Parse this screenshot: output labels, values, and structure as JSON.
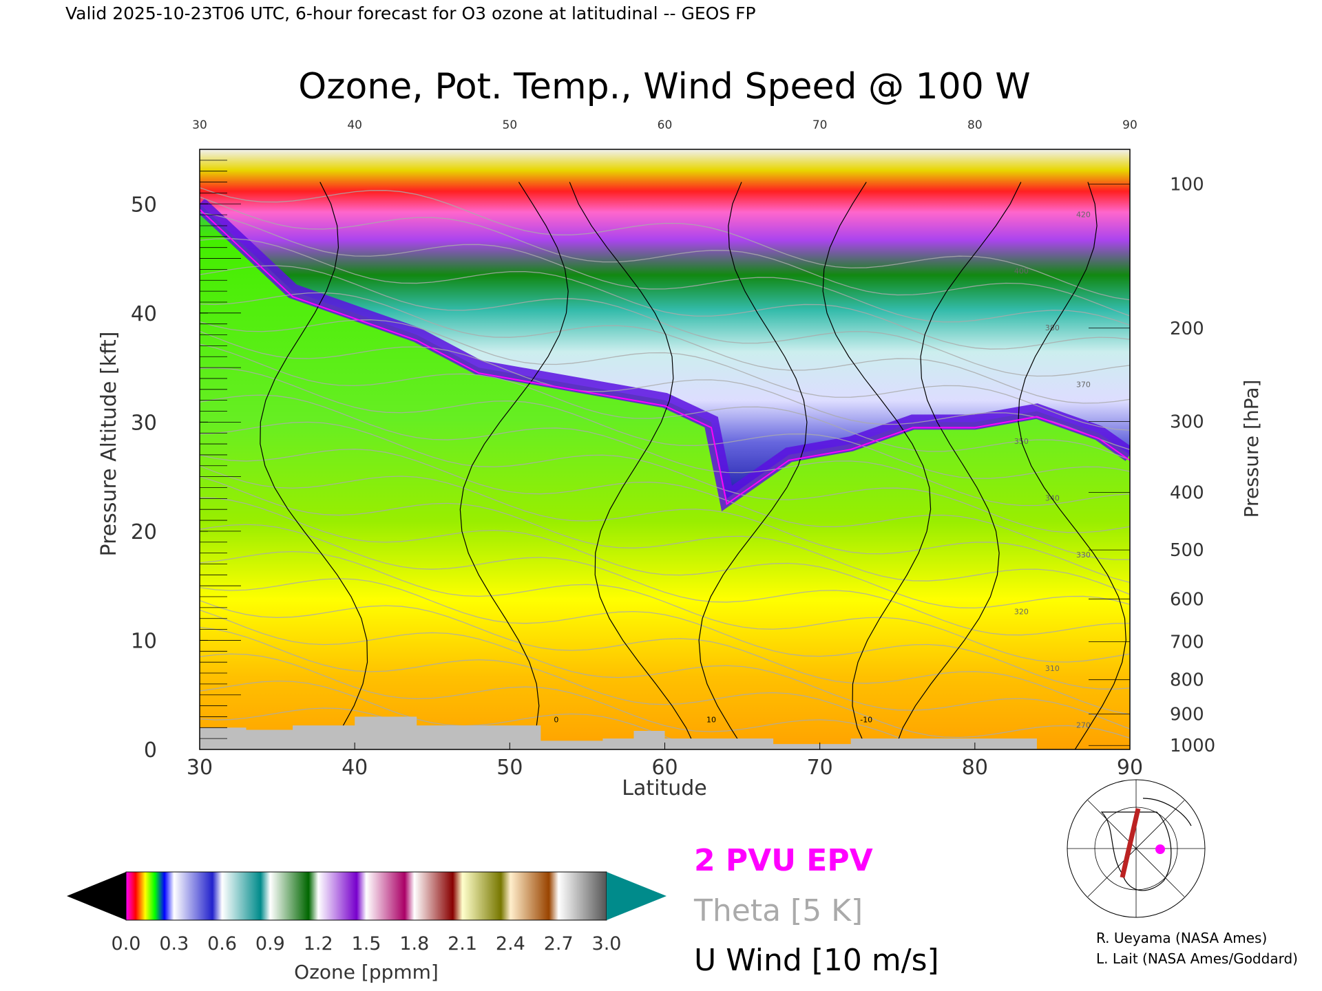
{
  "header": "Valid 2025-10-23T06 UTC, 6-hour forecast for O3 ozone at latitudinal -- GEOS FP",
  "chart_data": {
    "type": "heatmap",
    "title": "Ozone, Pot. Temp., Wind Speed @ 100 W",
    "xlabel": "Latitude",
    "ylabel": "Pressure Altitude [kft]",
    "y2label": "Pressure [hPa]",
    "xlim": [
      30,
      90
    ],
    "ylim": [
      0,
      55
    ],
    "x_ticks": [
      30,
      40,
      50,
      60,
      70,
      80,
      90
    ],
    "y_ticks": [
      0,
      10,
      20,
      30,
      40,
      50
    ],
    "pressure_ticks": [
      100,
      200,
      300,
      400,
      500,
      600,
      700,
      800,
      900,
      1000
    ],
    "overlays": [
      {
        "name": "2 PVU EPV",
        "color": "#ff00ff"
      },
      {
        "name": "Theta [5 K]",
        "color": "#aaaaaa"
      },
      {
        "name": "U Wind [10 m/s]",
        "color": "#000000"
      }
    ],
    "theta_labels": [
      "270",
      "310",
      "320",
      "330",
      "340",
      "350",
      "370",
      "380",
      "400",
      "420"
    ],
    "wind_labels": [
      "0",
      "10",
      "-10"
    ],
    "colorbar": {
      "label": "Ozone [ppmm]",
      "min": 0.0,
      "max": 3.0,
      "ticks": [
        "0.0",
        "0.3",
        "0.6",
        "0.9",
        "1.2",
        "1.5",
        "1.8",
        "2.1",
        "2.4",
        "2.7",
        "3.0"
      ],
      "under_color": "#000000",
      "over_color": "#008b8b"
    },
    "tropopause_alt_kft": [
      {
        "lat": 30,
        "alt": 50
      },
      {
        "lat": 33,
        "alt": 46
      },
      {
        "lat": 36,
        "alt": 42
      },
      {
        "lat": 40,
        "alt": 40
      },
      {
        "lat": 44,
        "alt": 38
      },
      {
        "lat": 48,
        "alt": 35
      },
      {
        "lat": 52,
        "alt": 34
      },
      {
        "lat": 56,
        "alt": 33
      },
      {
        "lat": 60,
        "alt": 32
      },
      {
        "lat": 63,
        "alt": 30
      },
      {
        "lat": 64,
        "alt": 23
      },
      {
        "lat": 68,
        "alt": 27
      },
      {
        "lat": 72,
        "alt": 28
      },
      {
        "lat": 76,
        "alt": 30
      },
      {
        "lat": 80,
        "alt": 30
      },
      {
        "lat": 84,
        "alt": 31
      },
      {
        "lat": 88,
        "alt": 29
      },
      {
        "lat": 90,
        "alt": 27
      }
    ],
    "terrain_alt_kft": [
      {
        "lat": 30,
        "alt": 2.0
      },
      {
        "lat": 33,
        "alt": 1.8
      },
      {
        "lat": 36,
        "alt": 2.2
      },
      {
        "lat": 40,
        "alt": 3.0
      },
      {
        "lat": 44,
        "alt": 2.2
      },
      {
        "lat": 48,
        "alt": 2.2
      },
      {
        "lat": 52,
        "alt": 0.8
      },
      {
        "lat": 56,
        "alt": 1.0
      },
      {
        "lat": 58,
        "alt": 1.7
      },
      {
        "lat": 60,
        "alt": 1.0
      },
      {
        "lat": 64,
        "alt": 1.0
      },
      {
        "lat": 67,
        "alt": 0.5
      },
      {
        "lat": 72,
        "alt": 1.0
      },
      {
        "lat": 76,
        "alt": 1.0
      },
      {
        "lat": 80,
        "alt": 1.0
      },
      {
        "lat": 83,
        "alt": 1.0
      },
      {
        "lat": 84,
        "alt": 0.0
      },
      {
        "lat": 90,
        "alt": 0.0
      }
    ]
  },
  "credits": [
    "R. Ueyama (NASA Ames)",
    "L. Lait (NASA Ames/Goddard)"
  ],
  "colors": {
    "epv": "#ff00ff",
    "theta": "#aaaaaa",
    "wind": "#000000",
    "terrain": "#bebebe",
    "troposphere_green": "#55ee00",
    "troposphere_yellow": "#ffff00",
    "troposphere_orange": "#ffa500",
    "tropopause_blue": "#2020cc",
    "tropopause_purple": "#8800ee"
  }
}
